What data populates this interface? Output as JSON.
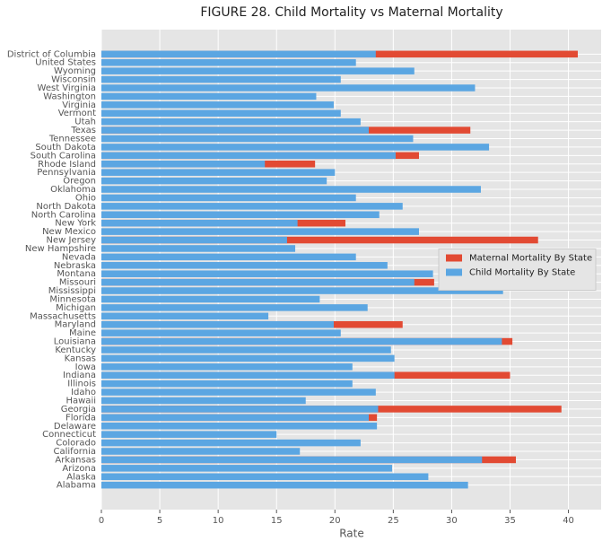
{
  "chart_data": {
    "type": "barh",
    "title": "FIGURE 28. Child Mortality vs Maternal Mortality",
    "xlabel": "Rate",
    "categories": [
      "Alabama",
      "Alaska",
      "Arizona",
      "Arkansas",
      "California",
      "Colorado",
      "Connecticut",
      "Delaware",
      "Florida",
      "Georgia",
      "Hawaii",
      "Idaho",
      "Illinois",
      "Indiana",
      "Iowa",
      "Kansas",
      "Kentucky",
      "Louisiana",
      "Maine",
      "Maryland",
      "Massachusetts",
      "Michigan",
      "Minnesota",
      "Mississippi",
      "Missouri",
      "Montana",
      "Nebraska",
      "Nevada",
      "New Hampshire",
      "New Jersey",
      "New Mexico",
      "New York",
      "North Carolina",
      "North Dakota",
      "Ohio",
      "Oklahoma",
      "Oregon",
      "Pennsylvania",
      "Rhode Island",
      "South Carolina",
      "South Dakota",
      "Tennessee",
      "Texas",
      "Utah",
      "Vermont",
      "Virginia",
      "Washington",
      "West Virginia",
      "Wisconsin",
      "Wyoming",
      "United States",
      "District of Columbia"
    ],
    "series": [
      {
        "name": "Maternal Mortality By State",
        "color": "#e24a33",
        "values": [
          null,
          null,
          null,
          35.5,
          null,
          null,
          null,
          null,
          23.6,
          39.4,
          null,
          null,
          null,
          35.0,
          null,
          null,
          null,
          35.2,
          null,
          25.8,
          null,
          null,
          null,
          null,
          28.5,
          null,
          null,
          null,
          null,
          37.4,
          null,
          20.9,
          null,
          null,
          null,
          null,
          null,
          null,
          18.3,
          27.2,
          null,
          null,
          31.6,
          null,
          null,
          null,
          null,
          null,
          null,
          null,
          null,
          40.8
        ]
      },
      {
        "name": "Child Mortality By State",
        "color": "#5ba6e2",
        "values": [
          31.4,
          28.0,
          24.9,
          32.6,
          17.0,
          22.2,
          15.0,
          23.6,
          22.9,
          23.7,
          17.5,
          23.5,
          21.5,
          25.1,
          21.5,
          25.1,
          24.8,
          34.3,
          20.5,
          19.9,
          14.3,
          22.8,
          18.7,
          34.4,
          26.8,
          28.4,
          24.5,
          21.8,
          16.6,
          15.9,
          27.2,
          16.8,
          23.8,
          25.8,
          21.8,
          32.5,
          19.3,
          20.0,
          14.0,
          25.2,
          33.2,
          26.7,
          22.9,
          22.2,
          20.5,
          19.9,
          18.4,
          32.0,
          20.5,
          26.8,
          21.8,
          23.5
        ]
      }
    ],
    "xlim": [
      0,
      42.8
    ],
    "xticks": [
      0,
      5,
      10,
      15,
      20,
      25,
      30,
      35,
      40
    ],
    "grid": true,
    "legend": "center right"
  }
}
